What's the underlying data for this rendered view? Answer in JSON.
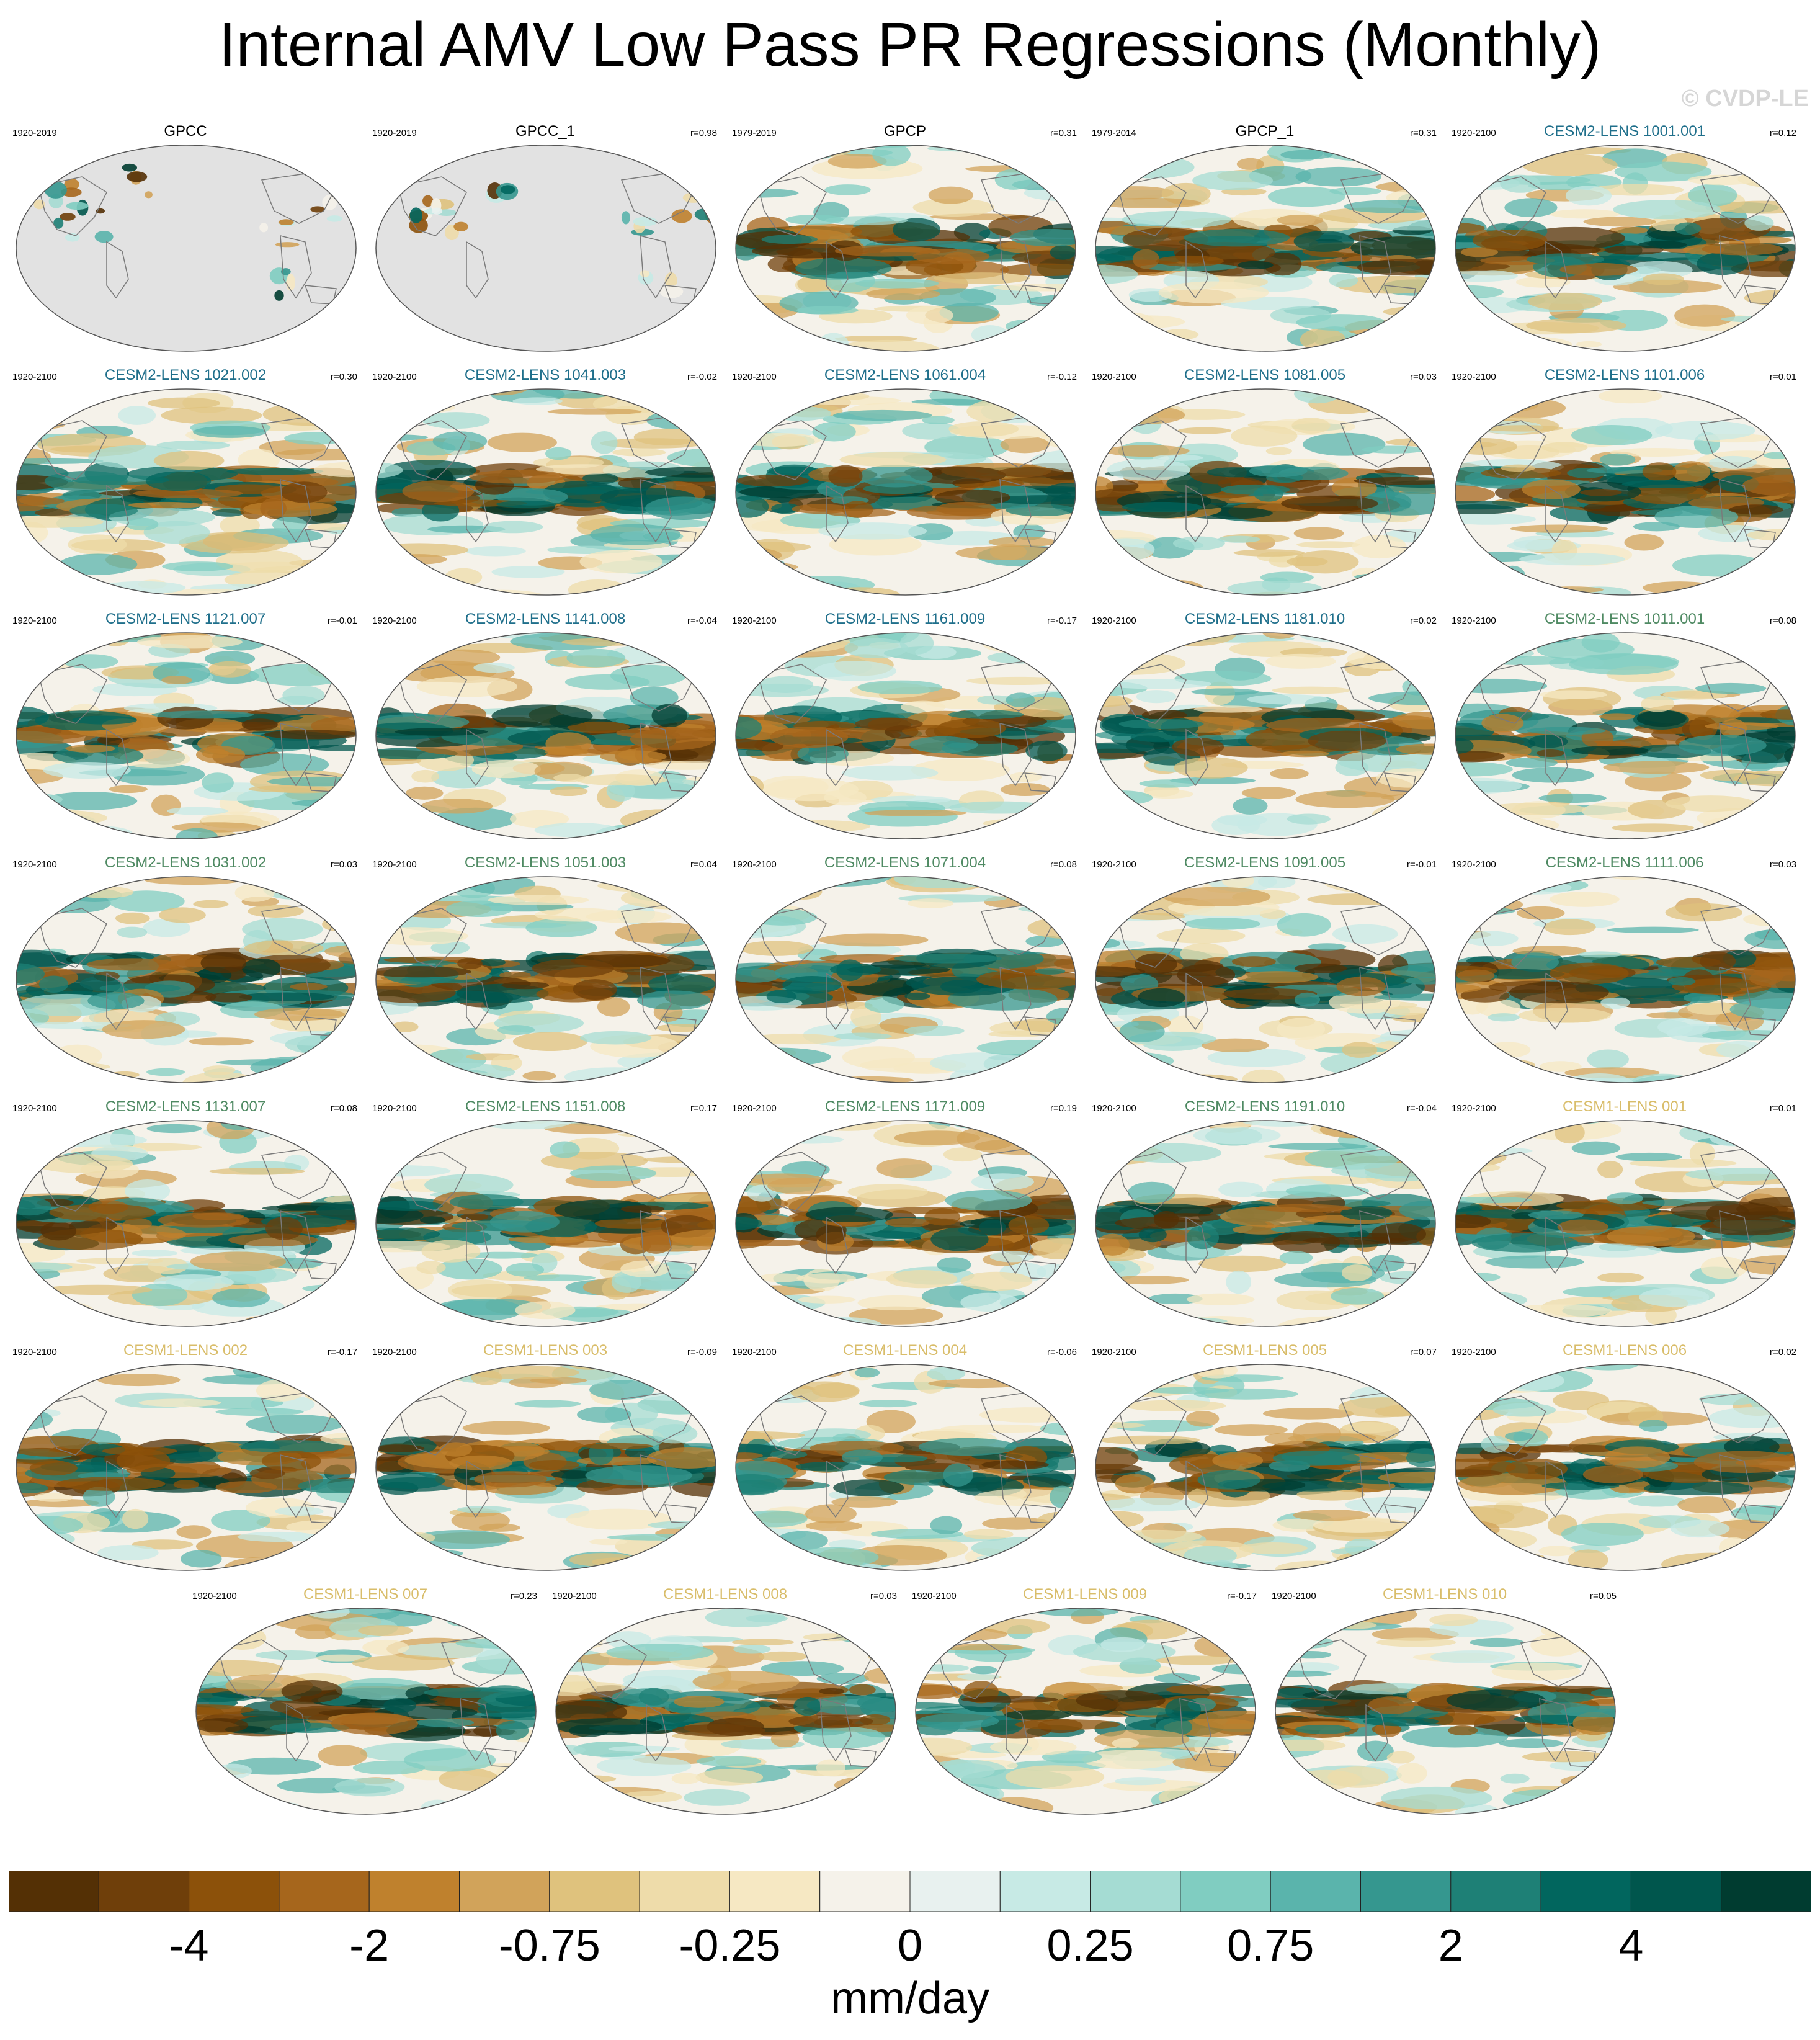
{
  "title": "Internal AMV Low Pass PR Regressions (Monthly)",
  "watermark": "© CVDP-LE",
  "colors": {
    "obs_title": "#000000",
    "cesm2_smbb_title": "#1f6f8b",
    "cesm2_cmip6_title": "#4f8a63",
    "cesm1_title": "#d9bd6a",
    "land_gray": "#e2e2e2",
    "outline": "#7a7a7a"
  },
  "panels": [
    {
      "name": "GPCC",
      "years": "1920-2019",
      "r": "",
      "group": "obs",
      "land": true
    },
    {
      "name": "GPCC_1",
      "years": "1920-2019",
      "r": "r=0.98",
      "group": "obs",
      "land": true
    },
    {
      "name": "GPCP",
      "years": "1979-2019",
      "r": "r=0.31",
      "group": "obs"
    },
    {
      "name": "GPCP_1",
      "years": "1979-2014",
      "r": "r=0.31",
      "group": "obs"
    },
    {
      "name": "CESM2-LENS 1001.001",
      "years": "1920-2100",
      "r": "r=0.12",
      "group": "smbb"
    },
    {
      "name": "CESM2-LENS 1021.002",
      "years": "1920-2100",
      "r": "r=0.30",
      "group": "smbb"
    },
    {
      "name": "CESM2-LENS 1041.003",
      "years": "1920-2100",
      "r": "r=-0.02",
      "group": "smbb"
    },
    {
      "name": "CESM2-LENS 1061.004",
      "years": "1920-2100",
      "r": "r=-0.12",
      "group": "smbb"
    },
    {
      "name": "CESM2-LENS 1081.005",
      "years": "1920-2100",
      "r": "r=0.03",
      "group": "smbb"
    },
    {
      "name": "CESM2-LENS 1101.006",
      "years": "1920-2100",
      "r": "r=0.01",
      "group": "smbb"
    },
    {
      "name": "CESM2-LENS 1121.007",
      "years": "1920-2100",
      "r": "r=-0.01",
      "group": "smbb"
    },
    {
      "name": "CESM2-LENS 1141.008",
      "years": "1920-2100",
      "r": "r=-0.04",
      "group": "smbb"
    },
    {
      "name": "CESM2-LENS 1161.009",
      "years": "1920-2100",
      "r": "r=-0.17",
      "group": "smbb"
    },
    {
      "name": "CESM2-LENS 1181.010",
      "years": "1920-2100",
      "r": "r=0.02",
      "group": "smbb"
    },
    {
      "name": "CESM2-LENS 1011.001",
      "years": "1920-2100",
      "r": "r=0.08",
      "group": "cmip6"
    },
    {
      "name": "CESM2-LENS 1031.002",
      "years": "1920-2100",
      "r": "r=0.03",
      "group": "cmip6"
    },
    {
      "name": "CESM2-LENS 1051.003",
      "years": "1920-2100",
      "r": "r=0.04",
      "group": "cmip6"
    },
    {
      "name": "CESM2-LENS 1071.004",
      "years": "1920-2100",
      "r": "r=0.08",
      "group": "cmip6"
    },
    {
      "name": "CESM2-LENS 1091.005",
      "years": "1920-2100",
      "r": "r=-0.01",
      "group": "cmip6"
    },
    {
      "name": "CESM2-LENS 1111.006",
      "years": "1920-2100",
      "r": "r=0.03",
      "group": "cmip6"
    },
    {
      "name": "CESM2-LENS 1131.007",
      "years": "1920-2100",
      "r": "r=0.08",
      "group": "cmip6"
    },
    {
      "name": "CESM2-LENS 1151.008",
      "years": "1920-2100",
      "r": "r=0.17",
      "group": "cmip6"
    },
    {
      "name": "CESM2-LENS 1171.009",
      "years": "1920-2100",
      "r": "r=0.19",
      "group": "cmip6"
    },
    {
      "name": "CESM2-LENS 1191.010",
      "years": "1920-2100",
      "r": "r=-0.04",
      "group": "cmip6"
    },
    {
      "name": "CESM1-LENS 001",
      "years": "1920-2100",
      "r": "r=0.01",
      "group": "cesm1"
    },
    {
      "name": "CESM1-LENS 002",
      "years": "1920-2100",
      "r": "r=-0.17",
      "group": "cesm1"
    },
    {
      "name": "CESM1-LENS 003",
      "years": "1920-2100",
      "r": "r=-0.09",
      "group": "cesm1"
    },
    {
      "name": "CESM1-LENS 004",
      "years": "1920-2100",
      "r": "r=-0.06",
      "group": "cesm1"
    },
    {
      "name": "CESM1-LENS 005",
      "years": "1920-2100",
      "r": "r=0.07",
      "group": "cesm1"
    },
    {
      "name": "CESM1-LENS 006",
      "years": "1920-2100",
      "r": "r=0.02",
      "group": "cesm1"
    },
    {
      "name": "CESM1-LENS 007",
      "years": "1920-2100",
      "r": "r=0.23",
      "group": "cesm1"
    },
    {
      "name": "CESM1-LENS 008",
      "years": "1920-2100",
      "r": "r=0.03",
      "group": "cesm1"
    },
    {
      "name": "CESM1-LENS 009",
      "years": "1920-2100",
      "r": "r=-0.17",
      "group": "cesm1"
    },
    {
      "name": "CESM1-LENS 010",
      "years": "1920-2100",
      "r": "r=0.05",
      "group": "cesm1"
    }
  ],
  "colorbar": {
    "colors": [
      "#543005",
      "#6f3f0a",
      "#8c510a",
      "#a6661c",
      "#bf812d",
      "#d1a35a",
      "#dfc27d",
      "#eedcaa",
      "#f6e8c3",
      "#f5f2ea",
      "#e8f1ef",
      "#c7eae5",
      "#a5dcd3",
      "#80cdc1",
      "#5ab4ac",
      "#35978f",
      "#1e8076",
      "#01665e",
      "#00564d",
      "#003c30"
    ],
    "labels": [
      "-4",
      "-2",
      "-0.75",
      "-0.25",
      "0",
      "0.25",
      "0.75",
      "2",
      "4"
    ],
    "units": "mm/day"
  }
}
